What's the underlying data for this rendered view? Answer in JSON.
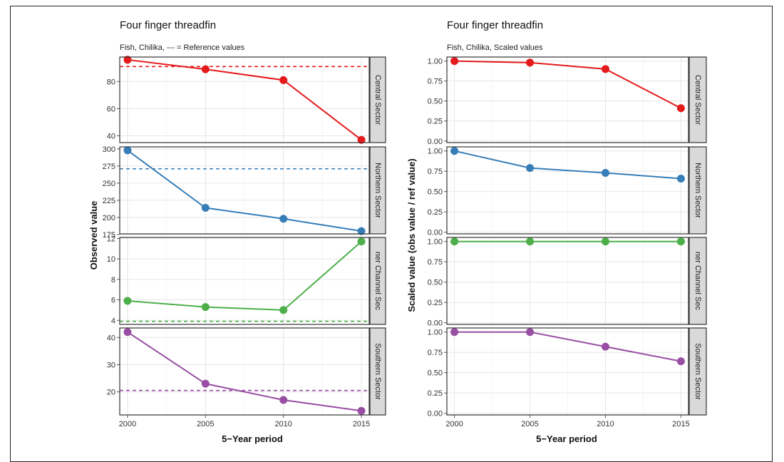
{
  "chart_data": [
    {
      "type": "line",
      "title": "Four finger threadfin",
      "subtitle": "Fish, Chilika, --- = Reference values",
      "xlabel": "5−Year period",
      "ylabel": "Observed value",
      "x": [
        2000,
        2005,
        2010,
        2015
      ],
      "x_ticks": [
        "2000",
        "2005",
        "2010",
        "2015"
      ],
      "xlim": [
        1999.5,
        2015.5
      ],
      "facets": [
        {
          "strip": "Central Sector",
          "color": "#e41a1c",
          "values": [
            96,
            89,
            81,
            37
          ],
          "reference": 91,
          "ylim": [
            35,
            98
          ],
          "y_ticks": [
            40,
            60,
            80
          ]
        },
        {
          "strip": "Northern Sector",
          "color": "#377eb8",
          "values": [
            298,
            214,
            198,
            180
          ],
          "reference": 271,
          "ylim": [
            176,
            303
          ],
          "y_ticks": [
            175,
            200,
            225,
            250,
            275,
            300
          ]
        },
        {
          "strip": "ner Channel Sec",
          "color": "#4daf4a",
          "values": [
            5.9,
            5.3,
            5.0,
            11.7
          ],
          "reference": 3.9,
          "ylim": [
            3.6,
            12.1
          ],
          "y_ticks": [
            4,
            6,
            8,
            10,
            12
          ]
        },
        {
          "strip": "Southern Sector",
          "color": "#984ea3",
          "values": [
            42,
            23,
            17,
            13
          ],
          "reference": 20.5,
          "ylim": [
            11.5,
            43.5
          ],
          "y_ticks": [
            20,
            30,
            40
          ]
        }
      ]
    },
    {
      "type": "line",
      "title": "Four finger threadfin",
      "subtitle": "Fish, Chilika, Scaled values",
      "xlabel": "5−Year period",
      "ylabel": "Scaled value (obs value / ref value)",
      "x": [
        2000,
        2005,
        2010,
        2015
      ],
      "x_ticks": [
        "2000",
        "2005",
        "2010",
        "2015"
      ],
      "xlim": [
        1999.5,
        2015.5
      ],
      "facets": [
        {
          "strip": "Central Sector",
          "color": "#e41a1c",
          "values": [
            1.0,
            0.98,
            0.9,
            0.41
          ],
          "ylim": [
            -0.02,
            1.05
          ],
          "y_ticks": [
            "0.00",
            "0.25",
            "0.50",
            "0.75",
            "1.00"
          ]
        },
        {
          "strip": "Northern Sector",
          "color": "#377eb8",
          "values": [
            1.0,
            0.79,
            0.73,
            0.66
          ],
          "ylim": [
            -0.02,
            1.05
          ],
          "y_ticks": [
            "0.00",
            "0.25",
            "0.50",
            "0.75",
            "1.00"
          ]
        },
        {
          "strip": "ner Channel Sec",
          "color": "#4daf4a",
          "values": [
            1.0,
            1.0,
            1.0,
            1.0
          ],
          "ylim": [
            -0.02,
            1.05
          ],
          "y_ticks": [
            "0.00",
            "0.25",
            "0.50",
            "0.75",
            "1.00"
          ]
        },
        {
          "strip": "Southern Sector",
          "color": "#984ea3",
          "values": [
            1.0,
            1.0,
            0.82,
            0.64
          ],
          "ylim": [
            -0.02,
            1.05
          ],
          "y_ticks": [
            "0.00",
            "0.25",
            "0.50",
            "0.75",
            "1.00"
          ]
        }
      ]
    }
  ]
}
